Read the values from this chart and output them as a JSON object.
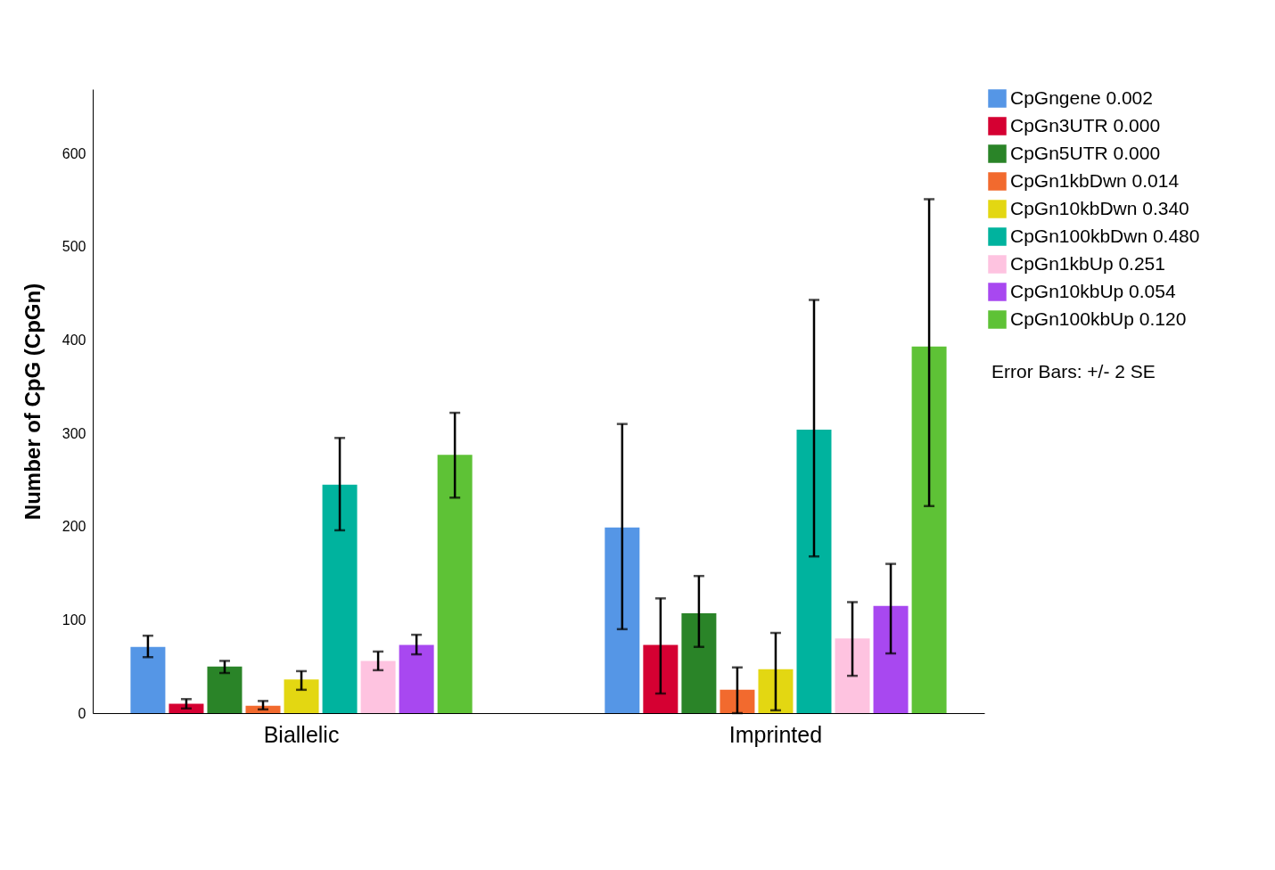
{
  "chart_data": {
    "type": "bar",
    "ylabel": "Number of CpG (CpGn)",
    "categories": [
      "Biallelic",
      "Imprinted"
    ],
    "series": [
      {
        "name": "CpGngene  0.002",
        "color": "#5596e6",
        "values": [
          71,
          199
        ],
        "errors": [
          [
            60,
            83
          ],
          [
            90,
            310
          ]
        ]
      },
      {
        "name": "CpGn3UTR  0.000",
        "color": "#d50032",
        "values": [
          10,
          73
        ],
        "errors": [
          [
            5,
            15
          ],
          [
            21,
            123
          ]
        ]
      },
      {
        "name": "CpGn5UTR  0.000",
        "color": "#2a8428",
        "values": [
          50,
          107
        ],
        "errors": [
          [
            43,
            56
          ],
          [
            71,
            147
          ]
        ]
      },
      {
        "name": "CpGn1kbDwn  0.014",
        "color": "#f26a2e",
        "values": [
          8,
          25
        ],
        "errors": [
          [
            4,
            13
          ],
          [
            0,
            49
          ]
        ]
      },
      {
        "name": "CpGn10kbDwn  0.340",
        "color": "#e3d712",
        "values": [
          36,
          47
        ],
        "errors": [
          [
            25,
            45
          ],
          [
            3,
            86
          ]
        ]
      },
      {
        "name": "CpGn100kbDwn  0.480",
        "color": "#00b39e",
        "values": [
          245,
          304
        ],
        "errors": [
          [
            196,
            295
          ],
          [
            168,
            443
          ]
        ]
      },
      {
        "name": "CpGn1kbUp  0.251",
        "color": "#fec3e0",
        "values": [
          56,
          80
        ],
        "errors": [
          [
            46,
            66
          ],
          [
            40,
            119
          ]
        ]
      },
      {
        "name": "CpGn10kbUp  0.054",
        "color": "#a848f0",
        "values": [
          73,
          115
        ],
        "errors": [
          [
            63,
            84
          ],
          [
            64,
            160
          ]
        ]
      },
      {
        "name": "CpGn100kbUp  0.120",
        "color": "#5ec236",
        "values": [
          277,
          393
        ],
        "errors": [
          [
            231,
            322
          ],
          [
            222,
            551
          ]
        ]
      }
    ],
    "ylim": [
      0,
      669
    ],
    "yticks": [
      0,
      100,
      200,
      300,
      400,
      500,
      600
    ],
    "grid": false,
    "legend": "top right",
    "annotations": [
      "Error Bars: +/- 2 SE"
    ]
  }
}
